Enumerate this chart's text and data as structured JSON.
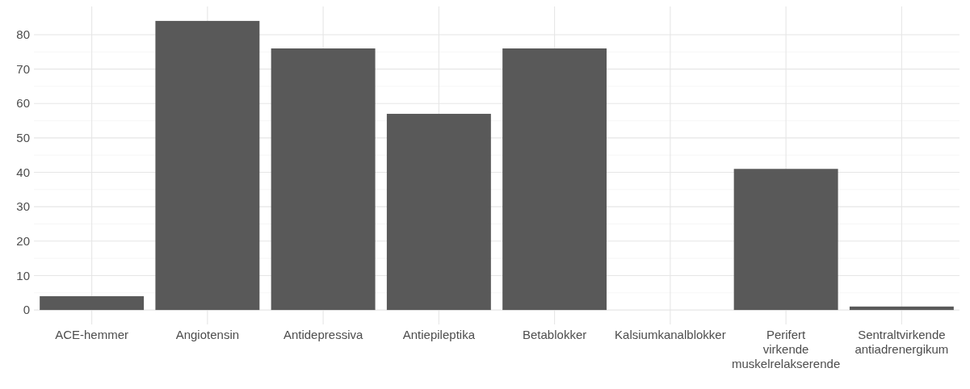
{
  "chart_data": {
    "type": "bar",
    "categories": [
      "ACE-hemmer",
      "Angiotensin",
      "Antidepressiva",
      "Antiepileptika",
      "Betablokker",
      "Kalsiumkanalblokker",
      "Perifert virkende muskelrelakserende",
      "Sentraltvirkende antiadrenergikum"
    ],
    "values": [
      4,
      84,
      76,
      57,
      76,
      0,
      41,
      1
    ],
    "color": "#595959",
    "ylim": [
      -4.2,
      88.2
    ],
    "yticks": [
      0,
      10,
      20,
      30,
      40,
      50,
      60,
      70,
      80
    ],
    "grid": true
  }
}
